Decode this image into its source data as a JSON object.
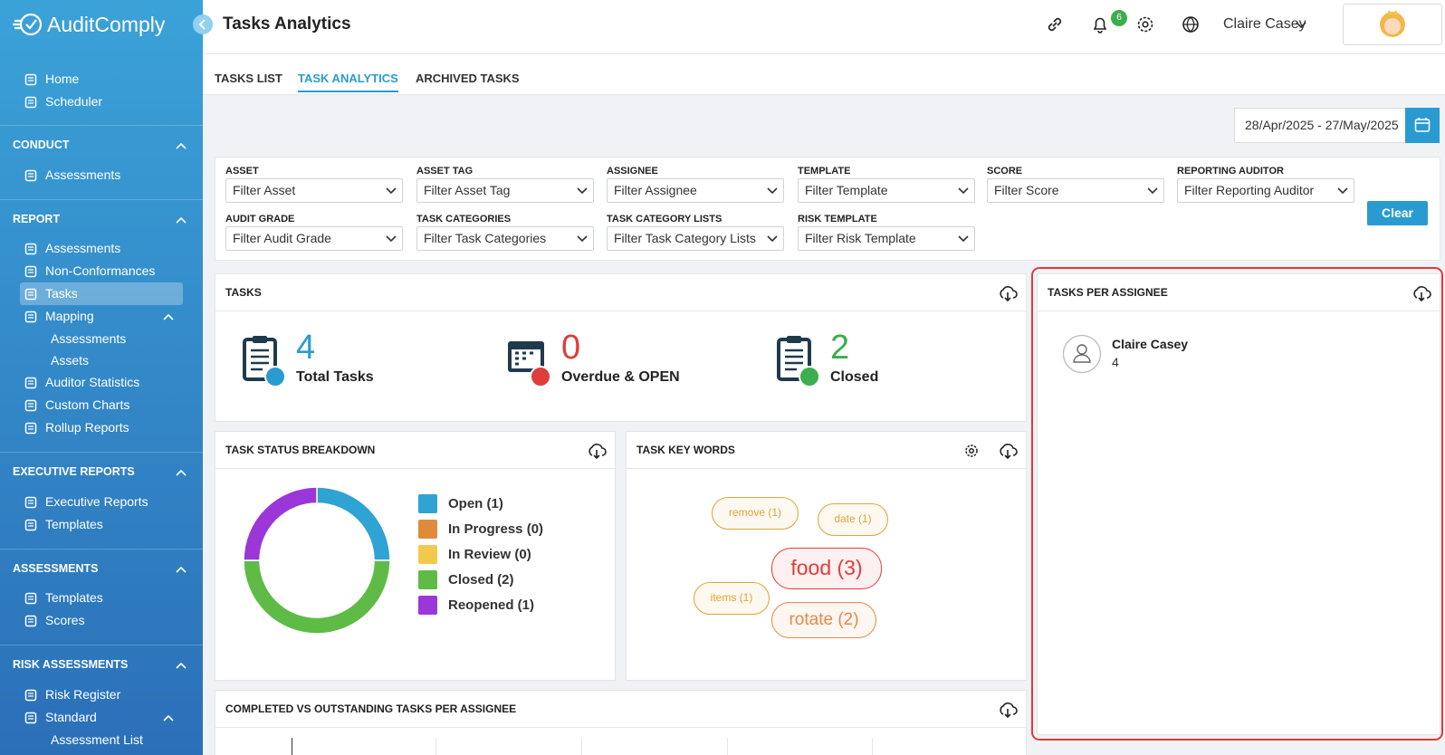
{
  "sidebar": {
    "brand": "AuditComply",
    "top": [
      {
        "label": "Home"
      },
      {
        "label": "Scheduler"
      }
    ],
    "sections": [
      {
        "title": "CONDUCT",
        "items": [
          {
            "label": "Assessments"
          }
        ]
      },
      {
        "title": "REPORT",
        "items": [
          {
            "label": "Assessments"
          },
          {
            "label": "Non-Conformances"
          },
          {
            "label": "Tasks",
            "active": true
          },
          {
            "label": "Mapping",
            "children": [
              "Assessments",
              "Assets"
            ]
          },
          {
            "label": "Auditor Statistics"
          },
          {
            "label": "Custom Charts"
          },
          {
            "label": "Rollup Reports"
          }
        ]
      },
      {
        "title": "EXECUTIVE REPORTS",
        "items": [
          {
            "label": "Executive Reports"
          },
          {
            "label": "Templates"
          }
        ]
      },
      {
        "title": "ASSESSMENTS",
        "items": [
          {
            "label": "Templates"
          },
          {
            "label": "Scores"
          }
        ]
      },
      {
        "title": "RISK ASSESSMENTS",
        "items": [
          {
            "label": "Risk Register"
          },
          {
            "label": "Standard",
            "children": [
              "Assessment List"
            ]
          }
        ]
      }
    ]
  },
  "header": {
    "title": "Tasks Analytics",
    "notifications": 6,
    "user": "Claire Casey"
  },
  "tabs": {
    "items": [
      "TASKS LIST",
      "TASK ANALYTICS",
      "ARCHIVED TASKS"
    ],
    "active": 1
  },
  "date_range": "28/Apr/2025 - 27/May/2025",
  "filters": {
    "fields": [
      {
        "label": "ASSET",
        "placeholder": "Filter Asset"
      },
      {
        "label": "ASSET TAG",
        "placeholder": "Filter Asset Tag"
      },
      {
        "label": "ASSIGNEE",
        "placeholder": "Filter Assignee"
      },
      {
        "label": "TEMPLATE",
        "placeholder": "Filter Template"
      },
      {
        "label": "SCORE",
        "placeholder": "Filter Score"
      },
      {
        "label": "REPORTING AUDITOR",
        "placeholder": "Filter Reporting Auditor"
      },
      {
        "label": "AUDIT GRADE",
        "placeholder": "Filter Audit Grade"
      },
      {
        "label": "TASK CATEGORIES",
        "placeholder": "Filter Task Categories"
      },
      {
        "label": "TASK CATEGORY LISTS",
        "placeholder": "Filter Task Category Lists"
      },
      {
        "label": "RISK TEMPLATE",
        "placeholder": "Filter Risk Template"
      }
    ],
    "clear": "Clear"
  },
  "tasks": {
    "title": "TASKS",
    "stats": [
      {
        "value": 4,
        "label": "Total Tasks",
        "color": "#2a9bd0"
      },
      {
        "value": 0,
        "label": "Overdue & OPEN",
        "color": "#e03c3c"
      },
      {
        "value": 2,
        "label": "Closed",
        "color": "#3cae4c"
      }
    ]
  },
  "tasks_per_assignee": {
    "title": "TASKS PER ASSIGNEE",
    "assignees": [
      {
        "name": "Claire Casey",
        "count": 4
      }
    ]
  },
  "chart_data": {
    "type": "pie",
    "donut": true,
    "title": "TASK STATUS BREAKDOWN",
    "categories": [
      "Open (1)",
      "In Progress (0)",
      "In Review (0)",
      "Closed (2)",
      "Reopened (1)"
    ],
    "values": [
      1,
      0,
      0,
      2,
      1
    ],
    "colors": [
      "#2fa3d3",
      "#e08a3c",
      "#f2c94c",
      "#5ebb46",
      "#9b36d9"
    ]
  },
  "key_words": {
    "title": "TASK KEY WORDS",
    "words": [
      {
        "text": "remove (1)",
        "color": "#e0a43a"
      },
      {
        "text": "date (1)",
        "color": "#e0a43a"
      },
      {
        "text": "food (3)",
        "color": "#e03c3c"
      },
      {
        "text": "items (1)",
        "color": "#e0a43a"
      },
      {
        "text": "rotate (2)",
        "color": "#e8884a"
      }
    ]
  },
  "completed_vs_outstanding": {
    "title": "COMPLETED VS OUTSTANDING TASKS PER ASSIGNEE"
  }
}
